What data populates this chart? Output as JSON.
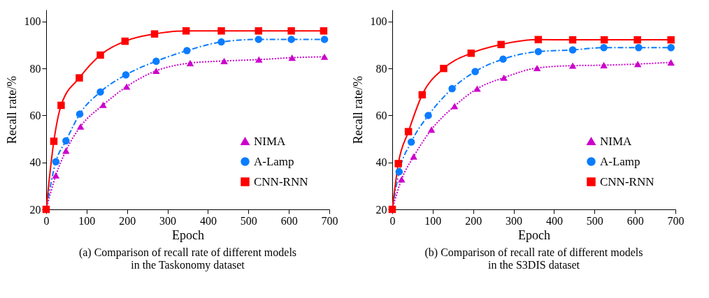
{
  "chart_data": [
    {
      "type": "line",
      "title": "(a) Comparison of recall rate of different models\nin the Taskonomy dataset",
      "xlabel": "Epoch",
      "ylabel": "Recall rate/%",
      "xlim": [
        0,
        700
      ],
      "xticks": [
        0,
        100,
        200,
        300,
        400,
        500,
        600,
        700
      ],
      "ylim": [
        20,
        105
      ],
      "yticks": [
        20,
        40,
        60,
        80,
        100
      ],
      "grid": false,
      "legend": "bottom right",
      "series": [
        {
          "name": "NIMA",
          "color": "#cc00cc",
          "marker": "triangle",
          "line_style": "dotted",
          "x": [
            0,
            24,
            49,
            85,
            141,
            199,
            272,
            356,
            440,
            526,
            608,
            688
          ],
          "values": [
            20,
            34.5,
            45,
            55.3,
            64.5,
            72.3,
            79,
            82.3,
            83.2,
            83.8,
            84.6,
            85
          ]
        },
        {
          "name": "A-Lamp",
          "color": "#0a7cff",
          "marker": "circle",
          "line_style": "dashed",
          "x": [
            0,
            24,
            49,
            83,
            134,
            197,
            272,
            348,
            433,
            525,
            606,
            688
          ],
          "values": [
            20,
            40.3,
            49.2,
            60.6,
            70,
            77.3,
            83.1,
            87.6,
            91.3,
            92.4,
            92.4,
            92.4
          ]
        },
        {
          "name": "CNN-RNN",
          "color": "#ff0000",
          "marker": "square",
          "line_style": "solid",
          "x": [
            0,
            19,
            37,
            82,
            134,
            195,
            268,
            346,
            433,
            525,
            606,
            686
          ],
          "values": [
            20,
            49,
            64.3,
            76,
            85.7,
            91.6,
            94.7,
            96,
            96,
            96,
            96,
            96
          ]
        }
      ]
    },
    {
      "type": "line",
      "title": "(b)  Comparison of recall rate of different models\nin the S3DIS dataset",
      "xlabel": "Epoch",
      "ylabel": "Recall rate/%",
      "xlim": [
        0,
        700
      ],
      "xticks": [
        0,
        100,
        200,
        300,
        400,
        500,
        600,
        700
      ],
      "ylim": [
        20,
        105
      ],
      "yticks": [
        20,
        40,
        60,
        80,
        100
      ],
      "grid": false,
      "legend": "bottom right",
      "series": [
        {
          "name": "NIMA",
          "color": "#cc00cc",
          "marker": "triangle",
          "line_style": "dotted",
          "x": [
            0,
            23,
            53,
            97,
            154,
            210,
            276,
            358,
            446,
            523,
            607,
            689
          ],
          "values": [
            20,
            32.8,
            42.5,
            54,
            64,
            71.4,
            76.1,
            80.2,
            81.2,
            81.4,
            81.9,
            82.6
          ]
        },
        {
          "name": "A-Lamp",
          "color": "#0a7cff",
          "marker": "circle",
          "line_style": "dashed",
          "x": [
            0,
            17,
            47,
            89,
            148,
            205,
            274,
            361,
            446,
            523,
            609,
            689
          ],
          "values": [
            20,
            36,
            48.7,
            60,
            71.4,
            78.7,
            84,
            87.2,
            87.9,
            88.9,
            88.9,
            88.9
          ]
        },
        {
          "name": "CNN-RNN",
          "color": "#ff0000",
          "marker": "square",
          "line_style": "solid",
          "x": [
            0,
            15,
            40,
            74,
            127,
            195,
            269,
            361,
            446,
            524,
            606,
            689
          ],
          "values": [
            20,
            39.5,
            53.1,
            68.8,
            80,
            86.5,
            90.2,
            92.3,
            92.2,
            92.2,
            92.2,
            92.2
          ]
        }
      ]
    }
  ]
}
